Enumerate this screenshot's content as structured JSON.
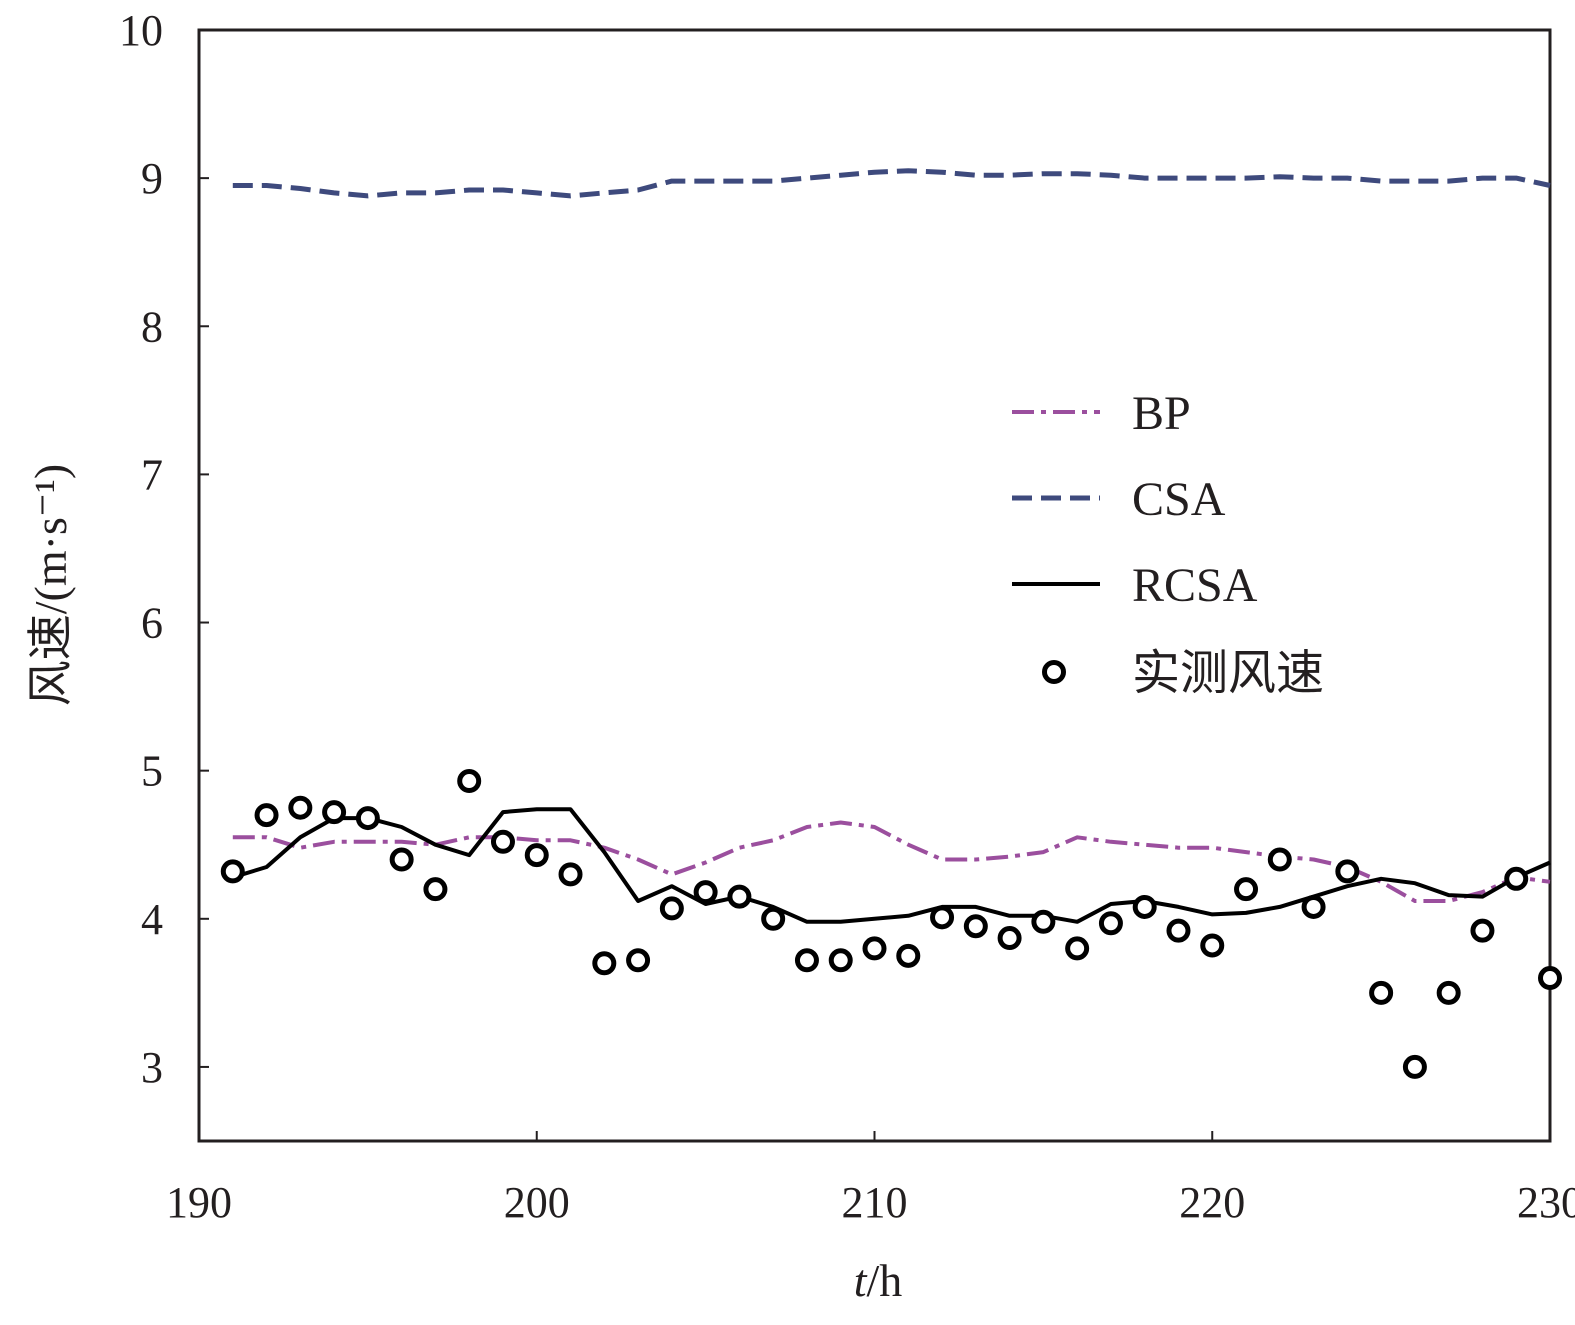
{
  "chart_data": {
    "type": "line",
    "title": "",
    "xlabel": {
      "italic": "t",
      "rest": "/h"
    },
    "ylabel": "风速/(m·s⁻¹)",
    "xlim": [
      190,
      230
    ],
    "ylim": [
      2.5,
      10
    ],
    "xticks": [
      190,
      200,
      210,
      220,
      230
    ],
    "yticks": [
      3,
      4,
      5,
      6,
      7,
      8,
      9,
      10
    ],
    "legend_position": "center-right",
    "x": [
      191,
      192,
      193,
      194,
      195,
      196,
      197,
      198,
      199,
      200,
      201,
      202,
      203,
      204,
      205,
      206,
      207,
      208,
      209,
      210,
      211,
      212,
      213,
      214,
      215,
      216,
      217,
      218,
      219,
      220,
      221,
      222,
      223,
      224,
      225,
      226,
      227,
      228,
      229,
      230
    ],
    "series": [
      {
        "name": "BP",
        "style": "dash-dot",
        "color": "#9b4f9e",
        "values": [
          4.55,
          4.55,
          4.48,
          4.52,
          4.52,
          4.52,
          4.5,
          4.55,
          4.55,
          4.53,
          4.53,
          4.48,
          4.4,
          4.3,
          4.38,
          4.48,
          4.53,
          4.62,
          4.65,
          4.62,
          4.5,
          4.4,
          4.4,
          4.42,
          4.45,
          4.55,
          4.52,
          4.5,
          4.48,
          4.48,
          4.45,
          4.42,
          4.4,
          4.35,
          4.25,
          4.12,
          4.12,
          4.18,
          4.28,
          4.25
        ]
      },
      {
        "name": "CSA",
        "style": "dashed",
        "color": "#3e4a7d",
        "values": [
          8.95,
          8.95,
          8.93,
          8.9,
          8.88,
          8.9,
          8.9,
          8.92,
          8.92,
          8.9,
          8.88,
          8.9,
          8.92,
          8.98,
          8.98,
          8.98,
          8.98,
          9.0,
          9.02,
          9.04,
          9.05,
          9.04,
          9.02,
          9.02,
          9.03,
          9.03,
          9.02,
          9.0,
          9.0,
          9.0,
          9.0,
          9.01,
          9.0,
          9.0,
          8.98,
          8.98,
          8.98,
          9.0,
          9.0,
          8.95
        ]
      },
      {
        "name": "RCSA",
        "style": "solid",
        "color": "#000000",
        "values": [
          4.28,
          4.35,
          4.55,
          4.68,
          4.68,
          4.62,
          4.5,
          4.43,
          4.72,
          4.74,
          4.74,
          4.45,
          4.12,
          4.22,
          4.1,
          4.15,
          4.08,
          3.98,
          3.98,
          4.0,
          4.02,
          4.08,
          4.08,
          4.02,
          4.02,
          3.98,
          4.1,
          4.12,
          4.08,
          4.03,
          4.04,
          4.08,
          4.15,
          4.22,
          4.27,
          4.24,
          4.16,
          4.15,
          4.28,
          4.38
        ]
      },
      {
        "name": "实测风速",
        "style": "markers",
        "color": "#000000",
        "values": [
          4.32,
          4.7,
          4.75,
          4.72,
          4.68,
          4.4,
          4.2,
          4.93,
          4.52,
          4.43,
          4.3,
          3.7,
          3.72,
          4.07,
          4.18,
          4.15,
          4.0,
          3.72,
          3.72,
          3.8,
          3.75,
          4.01,
          3.95,
          3.87,
          3.98,
          3.8,
          3.97,
          4.08,
          3.92,
          3.82,
          4.2,
          4.4,
          4.08,
          4.32,
          3.5,
          3.0,
          3.5,
          3.92,
          4.27,
          3.6
        ]
      }
    ]
  }
}
